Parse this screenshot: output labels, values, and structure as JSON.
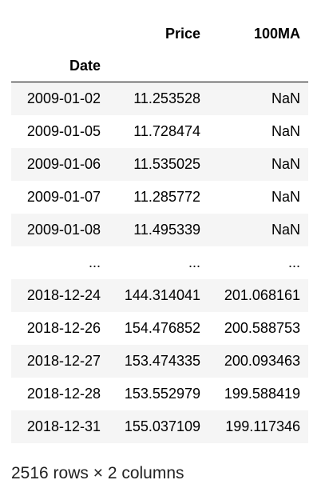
{
  "table": {
    "columns": [
      "Price",
      "100MA"
    ],
    "index_name": "Date",
    "rows": [
      {
        "index": "2009-01-02",
        "price": "11.253528",
        "ma100": "NaN"
      },
      {
        "index": "2009-01-05",
        "price": "11.728474",
        "ma100": "NaN"
      },
      {
        "index": "2009-01-06",
        "price": "11.535025",
        "ma100": "NaN"
      },
      {
        "index": "2009-01-07",
        "price": "11.285772",
        "ma100": "NaN"
      },
      {
        "index": "2009-01-08",
        "price": "11.495339",
        "ma100": "NaN"
      },
      {
        "index": "...",
        "price": "...",
        "ma100": "..."
      },
      {
        "index": "2018-12-24",
        "price": "144.314041",
        "ma100": "201.068161"
      },
      {
        "index": "2018-12-26",
        "price": "154.476852",
        "ma100": "200.588753"
      },
      {
        "index": "2018-12-27",
        "price": "153.474335",
        "ma100": "200.093463"
      },
      {
        "index": "2018-12-28",
        "price": "153.552979",
        "ma100": "199.588419"
      },
      {
        "index": "2018-12-31",
        "price": "155.037109",
        "ma100": "199.117346"
      }
    ]
  },
  "shape_note": "2516 rows × 2 columns"
}
